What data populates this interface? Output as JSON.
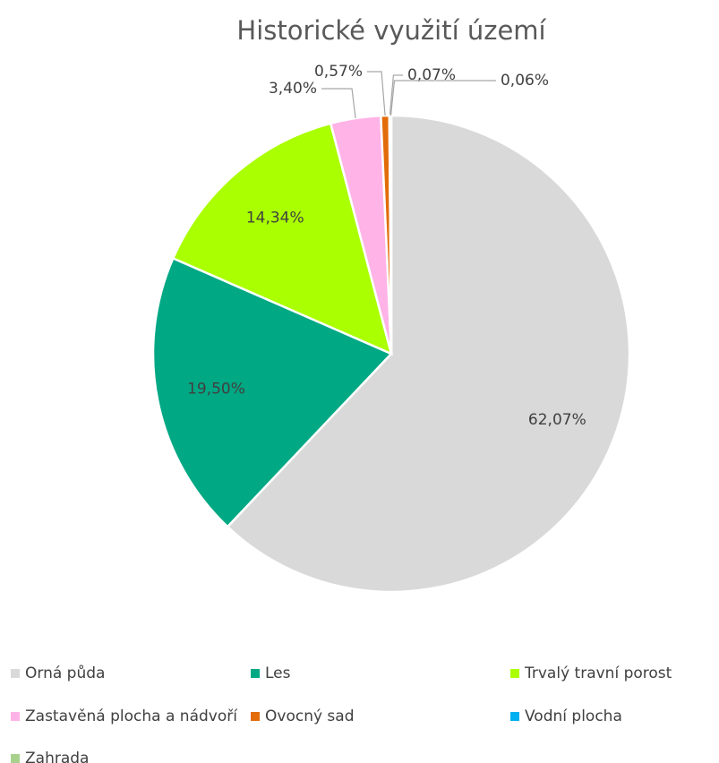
{
  "chart_data": {
    "type": "pie",
    "title": "Historické využití území",
    "categories": [
      "Orná půda",
      "Les",
      "Trvalý travní porost",
      "Zastavěná plocha a nádvoří",
      "Ovocný sad",
      "Vodní plocha",
      "Zahrada"
    ],
    "values": [
      62.07,
      19.5,
      14.34,
      3.4,
      0.57,
      0.07,
      0.06
    ],
    "value_labels": [
      "62,07%",
      "19,50%",
      "14,34%",
      "3,40%",
      "0,57%",
      "0,07%",
      "0,06%"
    ],
    "colors": [
      "#d9d9d9",
      "#00a884",
      "#aaff00",
      "#ffb3e6",
      "#e36c0a",
      "#00b0f0",
      "#a9d18e"
    ],
    "legend": "bottom"
  }
}
